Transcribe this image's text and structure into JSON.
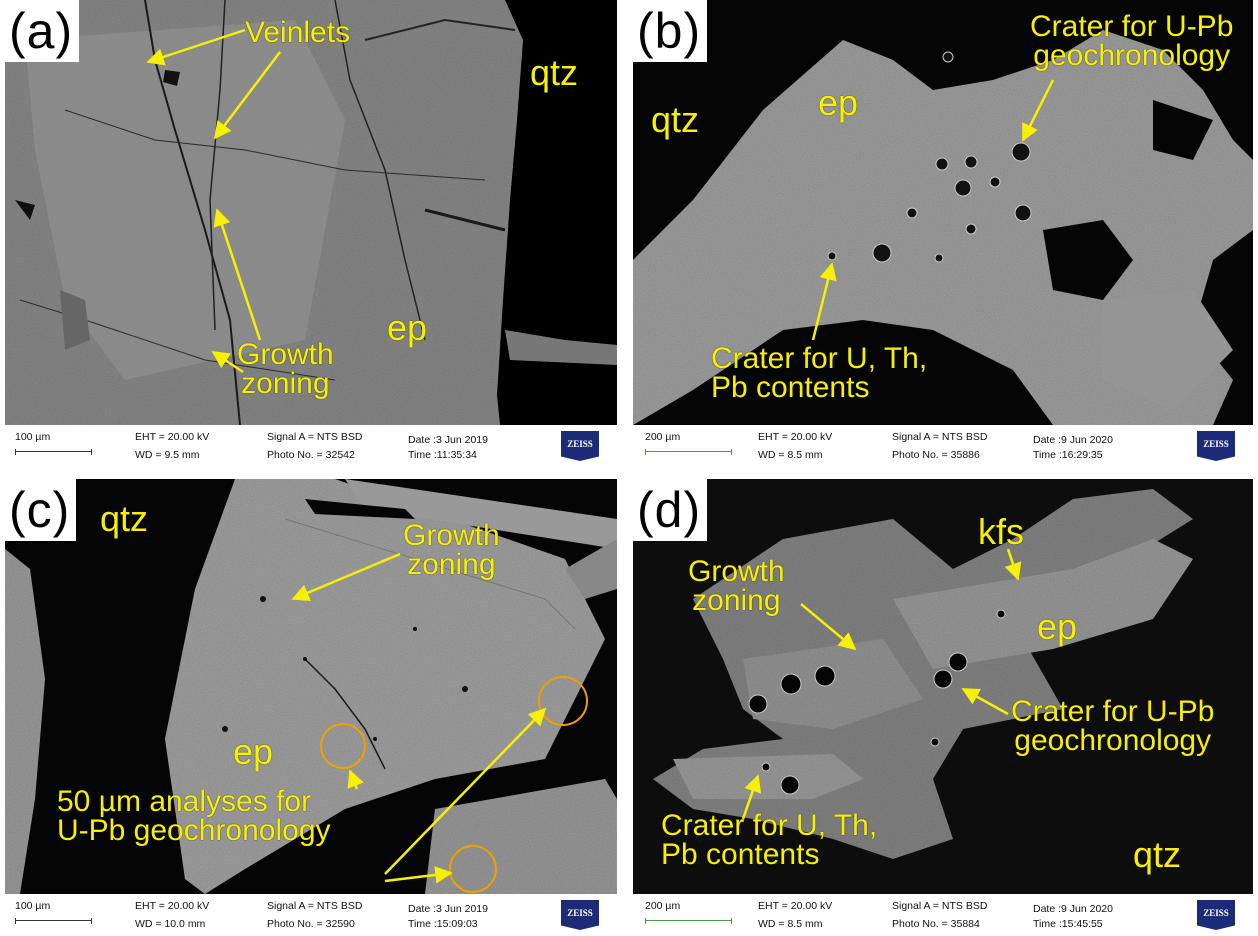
{
  "colors": {
    "annotation": "#f7f000",
    "mineral_grain": "#a8a8a8",
    "background": "#000000",
    "zeiss_logo": "#1c2b78"
  },
  "panels": {
    "a": {
      "label": "(a)",
      "annotations": {
        "veinlets": "Veinlets",
        "growth_zoning": "Growth\nzoning",
        "qtz": "qtz",
        "ep": "ep"
      },
      "info": {
        "scale": "100 µm",
        "eht": "EHT = 20.00 kV",
        "wd": "WD = 9.5 mm",
        "signal": "Signal A = NTS BSD",
        "photo": "Photo No. = 32542",
        "date": "Date :3 Jun 2019",
        "time": "Time :11:35:34",
        "logo": "ZEISS"
      }
    },
    "b": {
      "label": "(b)",
      "annotations": {
        "crater_upb": "Crater for U-Pb\ngeochronology",
        "crater_uthpb": "Crater for U, Th,\nPb contents",
        "qtz": "qtz",
        "ep": "ep"
      },
      "info": {
        "scale": "200 µm",
        "eht": "EHT = 20.00 kV",
        "wd": "WD = 8.5 mm",
        "signal": "Signal A = NTS BSD",
        "photo": "Photo No. = 35886",
        "date": "Date :9 Jun 2020",
        "time": "Time :16:29:35",
        "logo": "ZEISS"
      }
    },
    "c": {
      "label": "(c)",
      "annotations": {
        "growth_zoning": "Growth\nzoning",
        "analyses": "50 µm analyses for\nU-Pb geochronology",
        "qtz": "qtz",
        "ep": "ep"
      },
      "info": {
        "scale": "100 µm",
        "eht": "EHT = 20.00 kV",
        "wd": "WD = 10.0 mm",
        "signal": "Signal A = NTS BSD",
        "photo": "Photo No. = 32590",
        "date": "Date :3 Jun 2019",
        "time": "Time :15:09:03",
        "logo": "ZEISS"
      }
    },
    "d": {
      "label": "(d)",
      "annotations": {
        "kfs": "kfs",
        "growth_zoning": "Growth\nzoning",
        "ep": "ep",
        "crater_upb": "Crater for U-Pb\ngeochronology",
        "crater_uthpb": "Crater for U, Th,\nPb contents",
        "qtz": "qtz"
      },
      "info": {
        "scale": "200 µm",
        "eht": "EHT = 20.00 kV",
        "wd": "WD = 8.5 mm",
        "signal": "Signal A = NTS BSD",
        "photo": "Photo No. = 35884",
        "date": "Date :9 Jun 2020",
        "time": "Time :15:45:55",
        "logo": "ZEISS"
      }
    }
  }
}
